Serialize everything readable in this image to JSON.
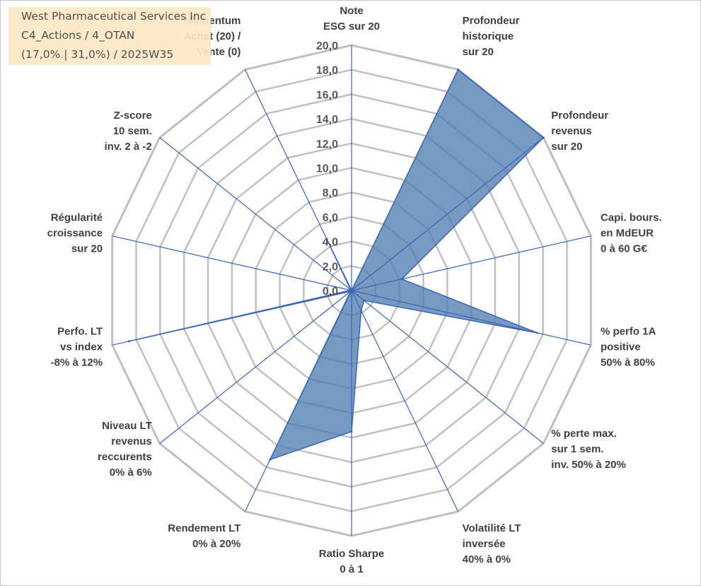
{
  "title": {
    "line1": "West Pharmaceutical Services Inc",
    "line2": "C4_Actions / 4_OTAN",
    "line3": "(17,0% | 31,0%) / 2025W35"
  },
  "colors": {
    "series_fill": "#4f7db0",
    "series_line": "#3a66b5",
    "grid": "#bfbfbf",
    "spoke": "#3a66b5",
    "title_bg": "#fde9c7"
  },
  "chart_data": {
    "type": "radar",
    "title": "West Pharmaceutical Services Inc",
    "rlim": [
      0,
      20
    ],
    "tick_step": 2,
    "tick_labels": [
      "0,0",
      "2,0",
      "4,0",
      "6,0",
      "8,0",
      "10,0",
      "12,0",
      "14,0",
      "16,0",
      "18,0",
      "20,0"
    ],
    "grid": true,
    "legend": "none",
    "categories": [
      [
        "Note",
        "ESG sur 20"
      ],
      [
        "Profondeur",
        "historique",
        "sur 20"
      ],
      [
        "Profondeur",
        "revenus",
        "sur 20"
      ],
      [
        "Capi. bours.",
        "en MdEUR",
        "0 à 60 G€"
      ],
      [
        "% perfo 1A",
        "positive",
        "50% à 80%"
      ],
      [
        "% perte max.",
        "sur 1 sem.",
        "inv. 50% à 20%"
      ],
      [
        "Volatilité LT",
        "inversée",
        "40% à 0%"
      ],
      [
        "Ratio Sharpe",
        "0 à 1"
      ],
      [
        "Rendement LT",
        "0% à 20%"
      ],
      [
        "Niveau LT",
        "revenus",
        "reccurents",
        "0% à 6%"
      ],
      [
        "Perfo. LT",
        "vs index",
        "-8% à 12%"
      ],
      [
        "Régularité",
        "croissance",
        "sur 20"
      ],
      [
        "Z-score",
        "10 sem.",
        "inv. 2 à -2"
      ],
      [
        "Momentum",
        "Achat (20) /",
        "Vente (0)"
      ]
    ],
    "series": [
      {
        "values": [
          0.0,
          20.0,
          20.0,
          4.2,
          15.5,
          1.3,
          1.8,
          11.5,
          15.3,
          0.1,
          18.6,
          0.1,
          0.1,
          4.6
        ]
      }
    ]
  }
}
